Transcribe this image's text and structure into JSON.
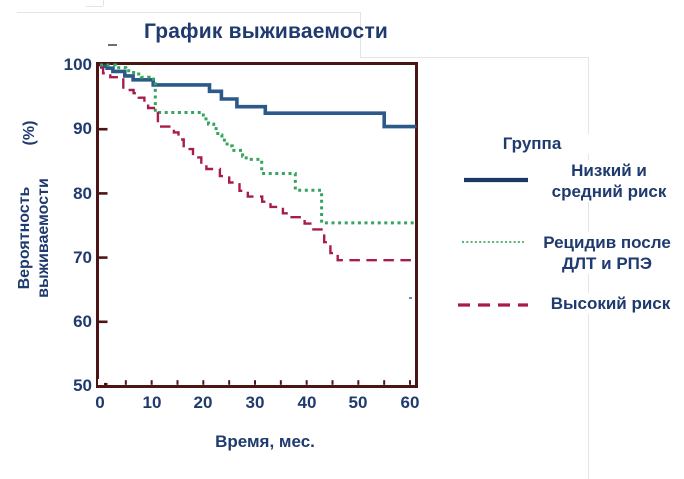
{
  "title": "График выживаемости",
  "y_axis": {
    "title_line1": "Вероятность",
    "title_line2": "выживаемости",
    "unit": "(%)",
    "tick_labels": [
      "100",
      "90",
      "80",
      "70",
      "60",
      "50"
    ]
  },
  "x_axis": {
    "title": "Время, мес.",
    "tick_labels": [
      "0",
      "10",
      "20",
      "30",
      "40",
      "50",
      "60"
    ]
  },
  "legend": {
    "title": "Группа",
    "items": [
      {
        "line1": "Низкий и",
        "line2": "средний риск",
        "style": "solid",
        "color": "#1B3763"
      },
      {
        "line1": "Рецидив после",
        "line2": "ДЛТ и РПЭ",
        "style": "dotted",
        "color": "#55B473"
      },
      {
        "line1": "Высокий риск",
        "line2": "",
        "style": "dashed",
        "color": "#A81C4D"
      }
    ]
  },
  "colors": {
    "text_navy": "#1F3A6E",
    "frame_maroon": "#4C1515",
    "curve_blue": "#2B5A8A",
    "curve_green": "#35A45F",
    "curve_red": "#A81C4D"
  },
  "chart_data": {
    "type": "line",
    "subtype": "kaplan-meier-step",
    "title": "График выживаемости",
    "xlabel": "Время, мес.",
    "ylabel": "Вероятность выживаемости (%)",
    "xlim": [
      0,
      61.5
    ],
    "ylim": [
      50,
      100
    ],
    "x_ticks": [
      0,
      10,
      20,
      30,
      40,
      50,
      60
    ],
    "x_minor_tick_step": 5,
    "y_ticks": [
      100,
      90,
      80,
      70,
      60,
      50
    ],
    "grid": false,
    "legend_position": "right",
    "series": [
      {
        "name": "Низкий и средний риск",
        "style": "solid",
        "color": "#2B5A8A",
        "steps": [
          [
            0,
            99.8
          ],
          [
            1.4,
            99.5
          ],
          [
            2.5,
            99.0
          ],
          [
            4.8,
            98.3
          ],
          [
            6.4,
            97.7
          ],
          [
            10.3,
            96.9
          ],
          [
            21.2,
            95.9
          ],
          [
            23.5,
            94.7
          ],
          [
            26.5,
            93.5
          ],
          [
            32,
            92.5
          ],
          [
            55,
            90.4
          ],
          [
            61.5,
            90.4
          ]
        ]
      },
      {
        "name": "Рецидив после ДЛТ и РПЭ",
        "style": "dotted",
        "color": "#35A45F",
        "steps": [
          [
            0,
            100
          ],
          [
            3,
            99.6
          ],
          [
            5,
            99.1
          ],
          [
            6.5,
            98.6
          ],
          [
            8,
            98.1
          ],
          [
            9.5,
            97.8
          ],
          [
            10.7,
            92.6
          ],
          [
            20,
            91.6
          ],
          [
            21,
            90.8
          ],
          [
            22,
            90.1
          ],
          [
            22.8,
            89.1
          ],
          [
            23.6,
            88.3
          ],
          [
            24.6,
            87.4
          ],
          [
            25.6,
            86.7
          ],
          [
            27.6,
            85.8
          ],
          [
            28.3,
            85.3
          ],
          [
            31.3,
            83.1
          ],
          [
            37.8,
            80.5
          ],
          [
            42.9,
            75.4
          ],
          [
            61.5,
            75.4
          ]
        ]
      },
      {
        "name": "Высокий риск",
        "style": "dashed",
        "color": "#A81C4D",
        "steps": [
          [
            0,
            99.6
          ],
          [
            0.6,
            98.7
          ],
          [
            2,
            98.1
          ],
          [
            4.5,
            96.1
          ],
          [
            6.5,
            95.6
          ],
          [
            7.5,
            94.9
          ],
          [
            8.6,
            94.2
          ],
          [
            9.3,
            93.3
          ],
          [
            11.2,
            90.4
          ],
          [
            14.3,
            89.5
          ],
          [
            15.2,
            88.4
          ],
          [
            16.2,
            86.9
          ],
          [
            18,
            85.6
          ],
          [
            19.6,
            84.6
          ],
          [
            20.6,
            83.8
          ],
          [
            23.2,
            82.7
          ],
          [
            25,
            81.7
          ],
          [
            27,
            80.4
          ],
          [
            28.6,
            79.5
          ],
          [
            31.4,
            78.7
          ],
          [
            33,
            77.9
          ],
          [
            35.4,
            76.9
          ],
          [
            36.8,
            76.3
          ],
          [
            39.6,
            75.3
          ],
          [
            41,
            74.4
          ],
          [
            43.4,
            72.4
          ],
          [
            44.6,
            70.7
          ],
          [
            46,
            69.6
          ],
          [
            61.5,
            69.6
          ]
        ]
      }
    ]
  }
}
